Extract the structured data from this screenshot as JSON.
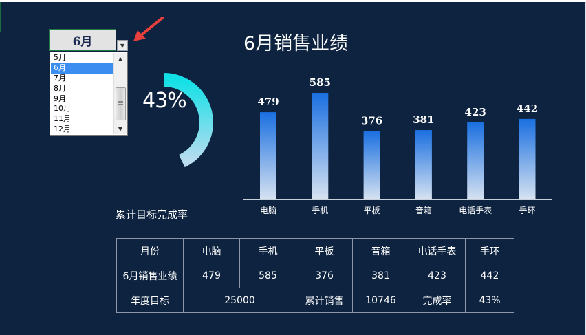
{
  "selector": {
    "value": "6月",
    "options": [
      "5月",
      "6月",
      "7月",
      "8月",
      "9月",
      "10月",
      "11月",
      "12月"
    ],
    "selected_index": 1
  },
  "gauge": {
    "value_text": "43%",
    "fraction": 0.43,
    "label": "累计目标完成率"
  },
  "chart_data": {
    "type": "bar",
    "title": "6月销售业绩",
    "categories": [
      "电脑",
      "手机",
      "平板",
      "音箱",
      "电话手表",
      "手环"
    ],
    "values": [
      479,
      585,
      376,
      381,
      423,
      442
    ],
    "xlabel": "",
    "ylabel": "",
    "ylim": [
      0,
      600
    ],
    "grid": false,
    "colors": {
      "bar_top": "#1a6fe0",
      "bar_bottom": "#d6e2f1",
      "axis": "#c8d0dc"
    }
  },
  "table": {
    "header": [
      "月份",
      "电脑",
      "手机",
      "平板",
      "音箱",
      "电话手表",
      "手环"
    ],
    "sales_row": [
      "6月销售业绩",
      "479",
      "585",
      "376",
      "381",
      "423",
      "442"
    ],
    "target_label": "年度目标",
    "target_value": "25000",
    "cum_label": "累计销售",
    "cum_value": "10746",
    "rate_label": "完成率",
    "rate_value": "43%"
  },
  "colors": {
    "background": "#0e2340",
    "gauge_start": "#b9dcef",
    "gauge_end": "#12e0e6",
    "arrow": "#e8403c"
  }
}
